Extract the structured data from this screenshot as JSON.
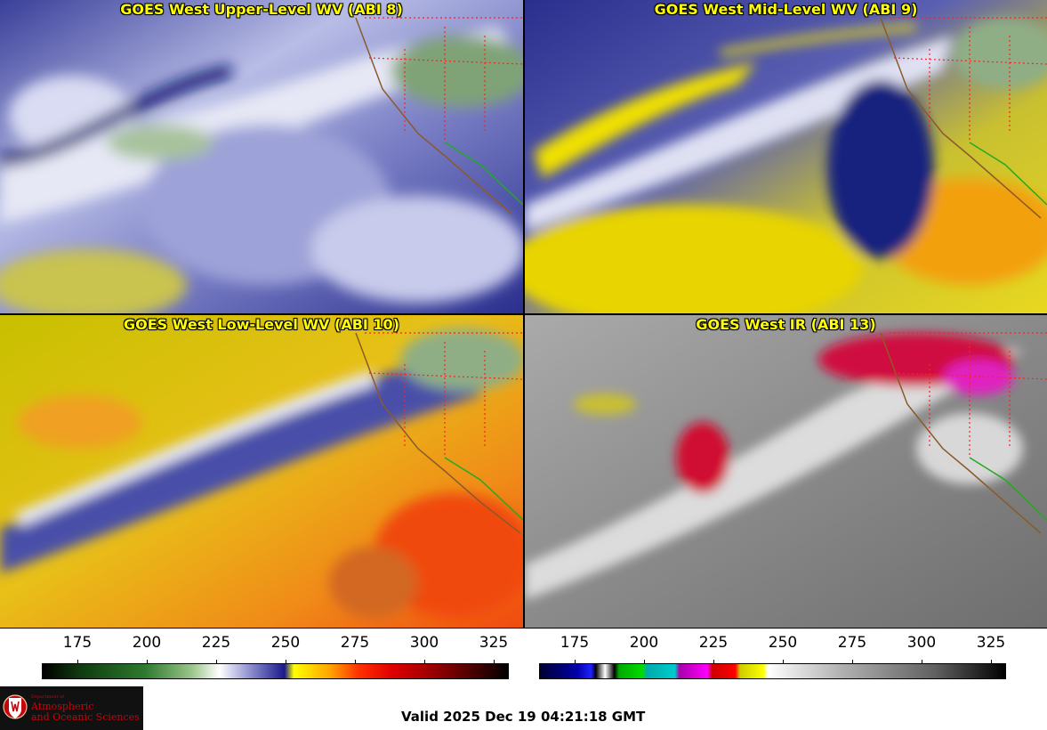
{
  "panels": [
    {
      "title": "GOES West Upper-Level WV (ABI 8)"
    },
    {
      "title": "GOES West Mid-Level WV (ABI 9)"
    },
    {
      "title": "GOES West Low-Level WV (ABI 10)"
    },
    {
      "title": "GOES West IR (ABI 13)"
    }
  ],
  "colorbars": [
    {
      "name": "water-vapor",
      "ticks": [
        "175",
        "200",
        "225",
        "250",
        "275",
        "300",
        "325"
      ]
    },
    {
      "name": "infrared",
      "ticks": [
        "175",
        "200",
        "225",
        "250",
        "275",
        "300",
        "325"
      ]
    }
  ],
  "logo": {
    "dept_small": "Department of",
    "line1": "Atmospheric",
    "line2": "and Oceanic Sciences"
  },
  "valid_time": "Valid 2025 Dec 19 04:21:18 GMT",
  "colors": {
    "title_text": "#ffff00",
    "logo_red": "#c5050c"
  }
}
